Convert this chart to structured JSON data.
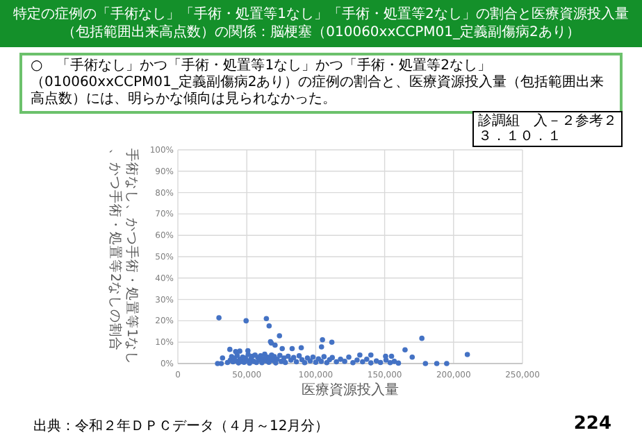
{
  "chart_data": {
    "type": "scatter",
    "title": "特定の症例の「手術なし」「手術・処置等1なし」「手術・処置等2なし」の割合と医療資源投入量（包括範囲出来高点数）の関係：脳梗塞（010060xxCCPM01_定義副傷病2あり）",
    "subtitle": "○　「手術なし」かつ「手術・処置等1なし」かつ「手術・処置等2なし」（010060xxCCPM01_定義副傷病2あり）の症例の割合と、医療資源投入量（包括範囲出来高点数）には、明らかな傾向は見られなかった。",
    "annotations": [
      "診調組　入－２参考２",
      "３．１０．１",
      "出典：令和２年ＤＰＣデータ（４月～12月分）",
      "224"
    ],
    "xlabel": "医療資源投入量",
    "ylabel": "手術なし、かつ手術・処置等1なし、かつ手術・処置等2なしの割合",
    "xlim": [
      0,
      250000
    ],
    "xticks": [
      0,
      {
        "value": 50000,
        "label": "50,000"
      },
      {
        "value": 100000,
        "label": "100,000"
      },
      {
        "value": 150000,
        "label": "150,000"
      },
      {
        "value": 200000,
        "label": "200,000"
      },
      {
        "value": 250000,
        "label": "250,000"
      }
    ],
    "ylim": [
      0,
      100
    ],
    "yticks": [
      {
        "value": 0,
        "label": "0%"
      },
      {
        "value": 10,
        "label": "10%"
      },
      {
        "value": 20,
        "label": "20%"
      },
      {
        "value": 30,
        "label": "30%"
      },
      {
        "value": 40,
        "label": "40%"
      },
      {
        "value": 50,
        "label": "50%"
      },
      {
        "value": 60,
        "label": "60%"
      },
      {
        "value": 70,
        "label": "70%"
      },
      {
        "value": 80,
        "label": "80%"
      },
      {
        "value": 90,
        "label": "90%"
      },
      {
        "value": 100,
        "label": "100%"
      }
    ],
    "grid": true,
    "marker": "circle",
    "series": [
      {
        "color": "#4472c4",
        "x": [
          29800,
          49500,
          64200,
          66200,
          73700,
          67800,
          67200,
          70500,
          104900,
          111700,
          104200,
          177000,
          210000,
          164800,
          170000,
          179600,
          187800,
          195000,
          32400,
          37700,
          41900,
          44900,
          50800,
          75700,
          82900,
          89500,
          132000,
          140000,
          150700,
          155000,
          28800,
          31500,
          36000,
          38000,
          39000,
          40000,
          41000,
          42000,
          43000,
          44000,
          45000,
          46000,
          47000,
          48000,
          49000,
          50000,
          51000,
          52000,
          53000,
          54000,
          55000,
          56000,
          57000,
          58000,
          59000,
          60000,
          61000,
          62000,
          63000,
          64000,
          65000,
          66000,
          67000,
          68000,
          69000,
          70000,
          71000,
          72000,
          74000,
          75000,
          77000,
          78000,
          80000,
          82000,
          84000,
          86000,
          88000,
          90000,
          92000,
          94000,
          96000,
          98000,
          100000,
          102000,
          104000,
          106000,
          108000,
          110000,
          112000,
          115000,
          118000,
          121000,
          124000,
          127000,
          130000,
          134000,
          137000,
          140000,
          144000,
          147000,
          151000,
          154000,
          157000,
          160000
        ],
        "values": [
          21.4,
          20.0,
          21.0,
          17.6,
          13.0,
          9.6,
          10.2,
          8.6,
          11.1,
          10.0,
          7.8,
          11.8,
          4.2,
          6.4,
          3.0,
          0,
          0,
          0,
          2.6,
          6.6,
          5.6,
          5.8,
          6.0,
          7.0,
          7.0,
          7.4,
          4.0,
          4.0,
          3.4,
          3.4,
          0,
          0,
          0.5,
          1.5,
          3.2,
          0.8,
          2.4,
          1.2,
          3.8,
          0.3,
          2.0,
          1.0,
          3.0,
          0.6,
          2.6,
          1.4,
          4.2,
          0.2,
          2.2,
          3.4,
          1.0,
          4.0,
          0.5,
          2.8,
          1.6,
          3.6,
          0.4,
          2.2,
          4.4,
          1.2,
          3.0,
          0.6,
          2.4,
          4.0,
          1.4,
          3.2,
          0.3,
          2.0,
          3.8,
          1.0,
          2.6,
          0.5,
          3.4,
          1.6,
          2.8,
          0.8,
          3.6,
          1.8,
          0.4,
          2.6,
          1.2,
          3.0,
          0.6,
          2.2,
          1.0,
          3.2,
          0.4,
          1.8,
          2.8,
          0.8,
          2.0,
          1.0,
          3.0,
          0.4,
          1.6,
          0.8,
          2.0,
          0.3,
          1.2,
          0.5,
          1.6,
          0.4,
          1.0,
          0.2
        ]
      }
    ]
  }
}
